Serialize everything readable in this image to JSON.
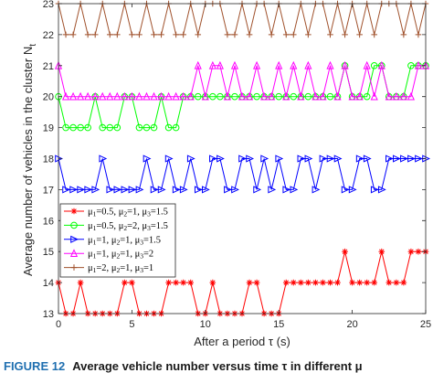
{
  "chart_data": {
    "type": "line",
    "xlabel": "After a period τ (s)",
    "ylabel": "Average number of vehicles in the cluster N",
    "ylabel_sub": "t",
    "xlim": [
      0,
      25
    ],
    "ylim": [
      13,
      23
    ],
    "x_ticks": [
      "0",
      "5",
      "10",
      "15",
      "20",
      "25"
    ],
    "y_ticks": [
      "13",
      "14",
      "15",
      "16",
      "17",
      "18",
      "19",
      "20",
      "21",
      "22",
      "23"
    ],
    "grid": false,
    "legend_position": "left",
    "series": [
      {
        "name": "μ1=0.5, μ2=1, μ3=1.5",
        "label_parts": [
          [
            "μ",
            "1",
            "=0.5, "
          ],
          [
            "μ",
            "2",
            "=1, "
          ],
          [
            "μ",
            "3",
            "=1.5"
          ]
        ],
        "color": "#ff0000",
        "marker": "asterisk",
        "x": [
          0,
          0.5,
          1,
          1.5,
          2,
          2.5,
          3,
          3.5,
          4,
          4.5,
          5,
          5.5,
          6,
          6.5,
          7,
          7.5,
          8,
          8.5,
          9,
          9.5,
          10,
          10.5,
          11,
          11.5,
          12,
          12.5,
          13,
          13.5,
          14,
          14.5,
          15,
          15.5,
          16,
          16.5,
          17,
          17.5,
          18,
          18.5,
          19,
          19.5,
          20,
          20.5,
          21,
          21.5,
          22,
          22.5,
          23,
          23.5,
          24,
          24.5,
          25
        ],
        "y": [
          14,
          13,
          13,
          14,
          13,
          13,
          13,
          13,
          13,
          14,
          14,
          13,
          13,
          13,
          13,
          14,
          14,
          14,
          14,
          13,
          13,
          14,
          13,
          13,
          13,
          13,
          14,
          14,
          13,
          13,
          13,
          14,
          14,
          14,
          14,
          14,
          14,
          14,
          14,
          15,
          14,
          14,
          14,
          14,
          15,
          14,
          14,
          14,
          15,
          15,
          15
        ]
      },
      {
        "name": "μ1=0.5, μ2=2, μ3=1.5",
        "label_parts": [
          [
            "μ",
            "1",
            "=0.5, "
          ],
          [
            "μ",
            "2",
            "=2, "
          ],
          [
            "μ",
            "3",
            "=1.5"
          ]
        ],
        "color": "#00ff00",
        "marker": "circle",
        "x": [
          0,
          0.5,
          1,
          1.5,
          2,
          2.5,
          3,
          3.5,
          4,
          4.5,
          5,
          5.5,
          6,
          6.5,
          7,
          7.5,
          8,
          8.5,
          9,
          9.5,
          10,
          10.5,
          11,
          11.5,
          12,
          12.5,
          13,
          13.5,
          14,
          14.5,
          15,
          15.5,
          16,
          16.5,
          17,
          17.5,
          18,
          18.5,
          19,
          19.5,
          20,
          20.5,
          21,
          21.5,
          22,
          22.5,
          23,
          23.5,
          24,
          24.5,
          25
        ],
        "y": [
          20,
          19,
          19,
          19,
          19,
          20,
          19,
          19,
          19,
          20,
          20,
          19,
          19,
          19,
          20,
          19,
          19,
          20,
          20,
          20,
          20,
          20,
          20,
          20,
          20,
          20,
          20,
          20,
          20,
          20,
          20,
          20,
          20,
          20,
          20,
          20,
          20,
          20,
          20,
          21,
          20,
          20,
          20,
          21,
          21,
          20,
          20,
          20,
          21,
          21,
          21
        ]
      },
      {
        "name": "μ1=1, μ2=1, μ3=1.5",
        "label_parts": [
          [
            "μ",
            "1",
            "=1, "
          ],
          [
            "μ",
            "2",
            "=1, "
          ],
          [
            "μ",
            "3",
            "=1.5"
          ]
        ],
        "color": "#0000ff",
        "marker": "triangle-right",
        "x": [
          0,
          0.5,
          1,
          1.5,
          2,
          2.5,
          3,
          3.5,
          4,
          4.5,
          5,
          5.5,
          6,
          6.5,
          7,
          7.5,
          8,
          8.5,
          9,
          9.5,
          10,
          10.5,
          11,
          11.5,
          12,
          12.5,
          13,
          13.5,
          14,
          14.5,
          15,
          15.5,
          16,
          16.5,
          17,
          17.5,
          18,
          18.5,
          19,
          19.5,
          20,
          20.5,
          21,
          21.5,
          22,
          22.5,
          23,
          23.5,
          24,
          24.5,
          25
        ],
        "y": [
          18,
          17,
          17,
          17,
          17,
          17,
          18,
          17,
          17,
          17,
          17,
          17,
          18,
          17,
          17,
          18,
          17,
          17,
          18,
          17,
          17,
          18,
          18,
          17,
          17,
          18,
          18,
          17,
          18,
          17,
          18,
          17,
          17,
          18,
          18,
          17,
          18,
          18,
          18,
          17,
          17,
          18,
          18,
          17,
          17,
          18,
          18,
          18,
          18,
          18,
          18
        ]
      },
      {
        "name": "μ1=1, μ2=1, μ3=2",
        "label_parts": [
          [
            "μ",
            "1",
            "=1, "
          ],
          [
            "μ",
            "2",
            "=1, "
          ],
          [
            "μ",
            "3",
            "=2"
          ]
        ],
        "color": "#ff00ff",
        "marker": "triangle-up",
        "x": [
          0,
          0.5,
          1,
          1.5,
          2,
          2.5,
          3,
          3.5,
          4,
          4.5,
          5,
          5.5,
          6,
          6.5,
          7,
          7.5,
          8,
          8.5,
          9,
          9.5,
          10,
          10.5,
          11,
          11.5,
          12,
          12.5,
          13,
          13.5,
          14,
          14.5,
          15,
          15.5,
          16,
          16.5,
          17,
          17.5,
          18,
          18.5,
          19,
          19.5,
          20,
          20.5,
          21,
          21.5,
          22,
          22.5,
          23,
          23.5,
          24,
          24.5,
          25
        ],
        "y": [
          21,
          20,
          20,
          20,
          20,
          20,
          20,
          20,
          20,
          20,
          20,
          20,
          20,
          20,
          20,
          20,
          20,
          20,
          20,
          21,
          20,
          21,
          21,
          20,
          21,
          20,
          20,
          21,
          20,
          20,
          21,
          20,
          21,
          20,
          21,
          20,
          20,
          21,
          20,
          21,
          20,
          20,
          21,
          20,
          21,
          20,
          20,
          20,
          20,
          21,
          21
        ]
      },
      {
        "name": "μ1=2, μ2=1, μ3=1",
        "label_parts": [
          [
            "μ",
            "1",
            "=2, "
          ],
          [
            "μ",
            "2",
            "=1, "
          ],
          [
            "μ",
            "3",
            "=1"
          ]
        ],
        "color": "#a0522d",
        "marker": "plus",
        "x": [
          0,
          0.5,
          1,
          1.5,
          2,
          2.5,
          3,
          3.5,
          4,
          4.5,
          5,
          5.5,
          6,
          6.5,
          7,
          7.5,
          8,
          8.5,
          9,
          9.5,
          10,
          10.5,
          11,
          11.5,
          12,
          12.5,
          13,
          13.5,
          14,
          14.5,
          15,
          15.5,
          16,
          16.5,
          17,
          17.5,
          18,
          18.5,
          19,
          19.5,
          20,
          20.5,
          21,
          21.5,
          22,
          22.5,
          23,
          23.5,
          24,
          24.5,
          25
        ],
        "y": [
          23,
          22,
          22,
          23,
          22,
          22,
          23,
          22,
          22,
          23,
          22,
          22,
          23,
          22,
          22,
          23,
          22,
          22,
          23,
          22,
          23,
          23,
          23,
          22,
          22,
          23,
          22,
          23,
          23,
          22,
          23,
          22,
          22,
          23,
          22,
          23,
          23,
          22,
          23,
          22,
          23,
          22,
          23,
          22,
          23,
          23,
          23,
          22,
          23,
          22,
          23
        ]
      }
    ]
  },
  "caption": {
    "label": "FIGURE 12",
    "text": "Average vehicle number versus time τ in different μ"
  }
}
